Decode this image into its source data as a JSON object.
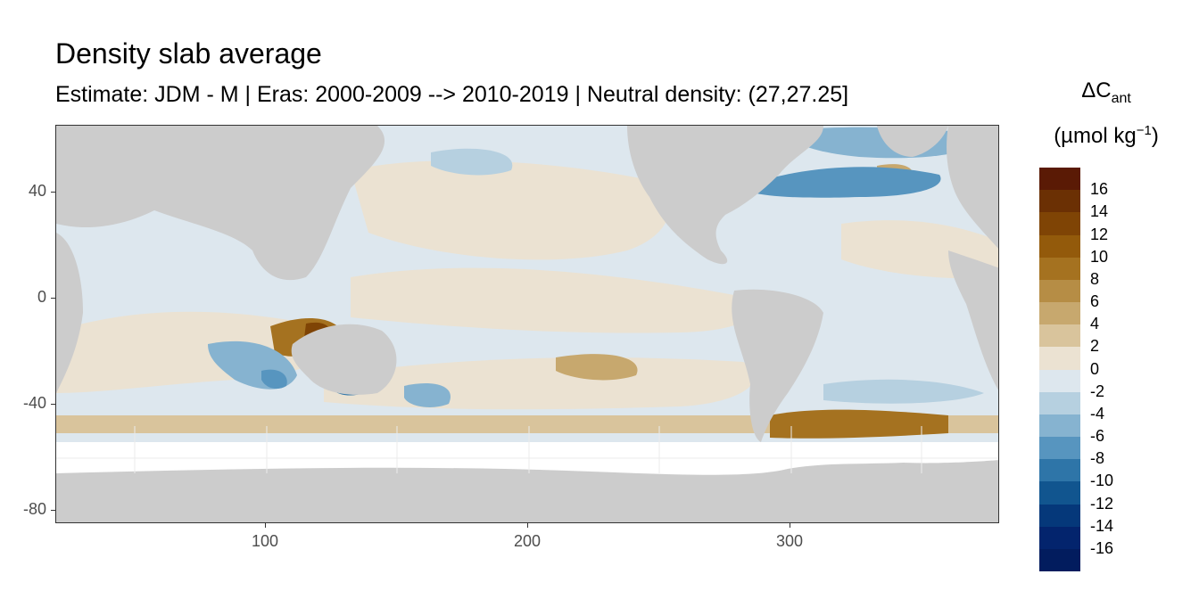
{
  "header": {
    "title": "Density slab average",
    "subtitle": "Estimate: JDM - M | Eras: 2000-2009 --> 2010-2019 | Neutral density: (27,27.25]"
  },
  "axes": {
    "y_ticks": [
      "40",
      "0",
      "-40",
      "-80"
    ],
    "x_ticks": [
      "100",
      "200",
      "300"
    ]
  },
  "legend": {
    "title_delta": "ΔC",
    "title_sub": "ant",
    "unit_prefix": "(µmol kg",
    "unit_exp": "−1",
    "unit_suffix": ")",
    "labels": [
      "16",
      "14",
      "12",
      "10",
      "8",
      "6",
      "4",
      "2",
      "0",
      "-2",
      "-4",
      "-6",
      "-8",
      "-10",
      "-12",
      "-14",
      "-16"
    ],
    "colors": [
      "#5a1a05",
      "#6b3004",
      "#7f4405",
      "#935a0b",
      "#a57220",
      "#b68d45",
      "#c7a86e",
      "#d9c49c",
      "#ebe2d2",
      "#dde7ee",
      "#b6d0e0",
      "#86b3d0",
      "#5795bf",
      "#2e75a8",
      "#11558f",
      "#05387a",
      "#03246d",
      "#021c5e"
    ]
  },
  "colors": {
    "land": "#cccccc",
    "no_data": "#ffffff",
    "near_zero_positive": "#ebe2d2",
    "near_zero_negative": "#dde7ee"
  }
}
